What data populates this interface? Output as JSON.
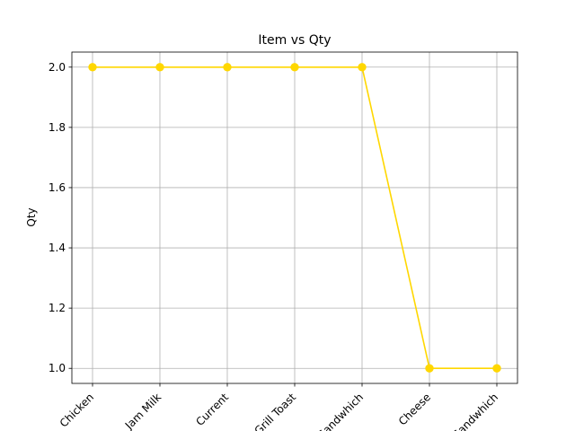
{
  "chart_data": {
    "type": "line",
    "title": "Item vs Qty",
    "xlabel": "",
    "ylabel": "Qty",
    "categories": [
      "Chicken",
      "Jam Milk",
      "Current",
      "Grill Toast",
      "Sandwhich",
      "Cheese",
      "Sandwhich"
    ],
    "series": [
      {
        "values": [
          2,
          2,
          2,
          2,
          2,
          1,
          1
        ],
        "color": "#FFD700"
      }
    ],
    "ylim": [
      0.95,
      2.05
    ],
    "yticks": [
      1.0,
      1.2,
      1.4,
      1.6,
      1.8,
      2.0
    ],
    "ytick_labels": [
      "1.0",
      "1.2",
      "1.4",
      "1.6",
      "1.8",
      "2.0"
    ],
    "grid": true,
    "marker": "circle"
  }
}
